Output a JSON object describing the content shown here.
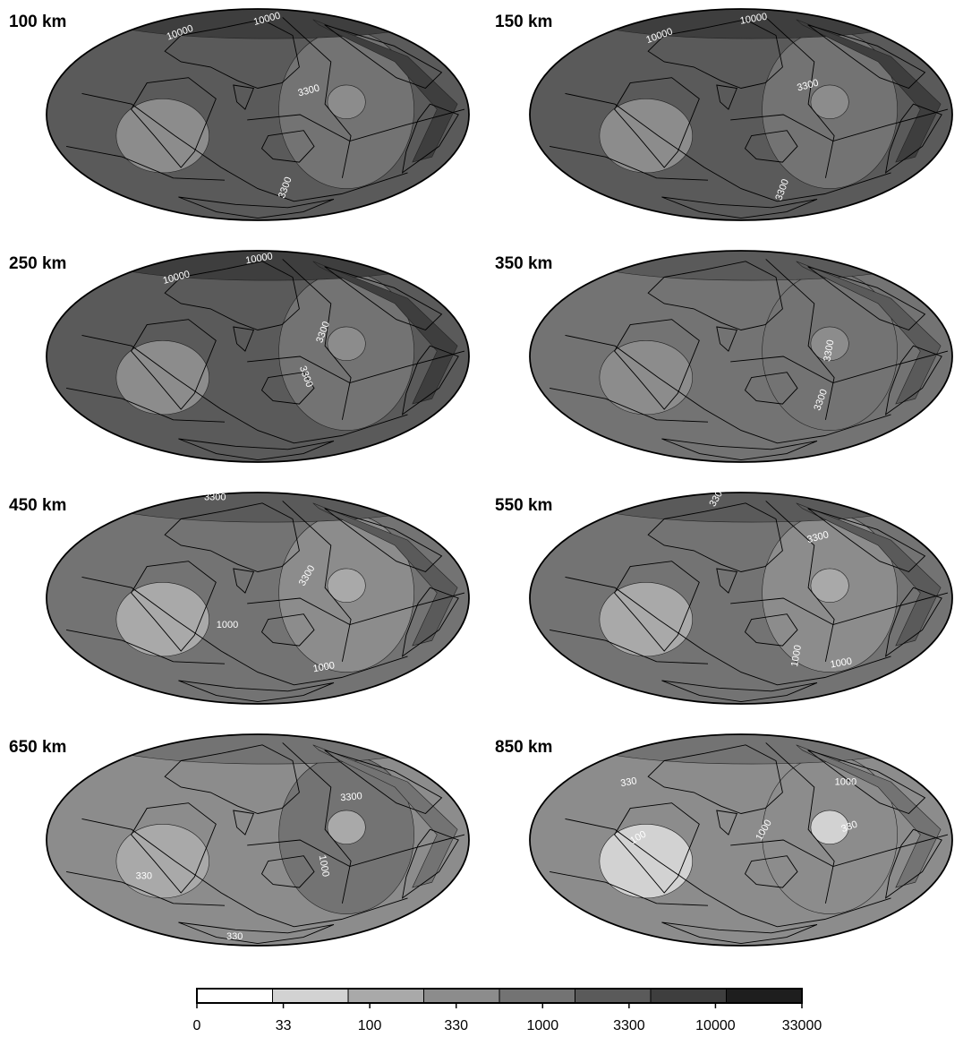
{
  "panels": [
    {
      "title": "100 km",
      "labels": [
        "10000",
        "10000",
        "3300",
        "3300"
      ],
      "shade": [
        5,
        4,
        3,
        6
      ]
    },
    {
      "title": "150 km",
      "labels": [
        "10000",
        "10000",
        "3300",
        "3300"
      ],
      "shade": [
        5,
        4,
        3,
        6
      ]
    },
    {
      "title": "250 km",
      "labels": [
        "10000",
        "10000",
        "3300",
        "3300"
      ],
      "shade": [
        5,
        4,
        3,
        6
      ]
    },
    {
      "title": "350 km",
      "labels": [
        "3300",
        "3300"
      ],
      "shade": [
        4,
        4,
        3,
        5
      ]
    },
    {
      "title": "450 km",
      "labels": [
        "3300",
        "3300",
        "1000",
        "1000"
      ],
      "shade": [
        4,
        3,
        2,
        5
      ]
    },
    {
      "title": "550 km",
      "labels": [
        "3300",
        "3300",
        "1000",
        "1000"
      ],
      "shade": [
        4,
        3,
        2,
        5
      ]
    },
    {
      "title": "650 km",
      "labels": [
        "3300",
        "1000",
        "330",
        "330"
      ],
      "shade": [
        3,
        4,
        2,
        4
      ]
    },
    {
      "title": "850 km",
      "labels": [
        "330",
        "1000",
        "1000",
        "330",
        "100"
      ],
      "shade": [
        3,
        3,
        1,
        4
      ]
    }
  ],
  "colorbar": {
    "ticks": [
      "0",
      "33",
      "100",
      "330",
      "1000",
      "3300",
      "10000",
      "33000"
    ],
    "colors": [
      "#ffffff",
      "#d2d2d2",
      "#a9a9a9",
      "#8c8c8c",
      "#737373",
      "#5a5a5a",
      "#3e3e3e",
      "#1e1e1e"
    ]
  },
  "legend": {
    "shade_colors": [
      "#ffffff",
      "#d2d2d2",
      "#a9a9a9",
      "#8c8c8c",
      "#737373",
      "#5a5a5a",
      "#3e3e3e"
    ]
  }
}
